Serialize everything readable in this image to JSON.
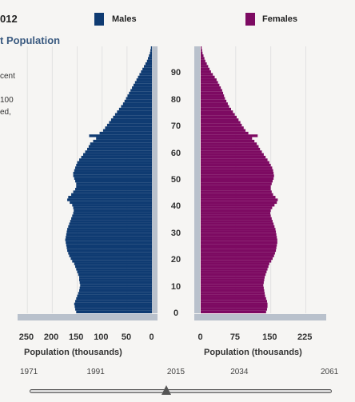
{
  "header": {
    "year_fragment": "012",
    "subtitle_fragment": "t Population",
    "cut_text": [
      "cent",
      "100",
      "ed,"
    ]
  },
  "legend": [
    {
      "label": "Males",
      "color": "#0f3b72"
    },
    {
      "label": "Females",
      "color": "#7d0a62"
    }
  ],
  "chart_data": {
    "type": "bar",
    "orientation": "horizontal-pyramid",
    "age_axis_labels": [
      "0",
      "10",
      "20",
      "30",
      "40",
      "50",
      "60",
      "70",
      "80",
      "90"
    ],
    "males_axis": {
      "label": "Population (thousands)",
      "ticks": [
        "250",
        "200",
        "150",
        "100",
        "50",
        "0"
      ],
      "xlim": [
        260,
        0
      ]
    },
    "females_axis": {
      "label": "Population (thousands)",
      "ticks": [
        "0",
        "75",
        "150",
        "225"
      ],
      "xlim": [
        0,
        255
      ]
    },
    "ages": [
      0,
      1,
      2,
      3,
      4,
      5,
      6,
      7,
      8,
      9,
      10,
      11,
      12,
      13,
      14,
      15,
      16,
      17,
      18,
      19,
      20,
      21,
      22,
      23,
      24,
      25,
      26,
      27,
      28,
      29,
      30,
      31,
      32,
      33,
      34,
      35,
      36,
      37,
      38,
      39,
      40,
      41,
      42,
      43,
      44,
      45,
      46,
      47,
      48,
      49,
      50,
      51,
      52,
      53,
      54,
      55,
      56,
      57,
      58,
      59,
      60,
      61,
      62,
      63,
      64,
      65,
      66,
      67,
      68,
      69,
      70,
      71,
      72,
      73,
      74,
      75,
      76,
      77,
      78,
      79,
      80,
      81,
      82,
      83,
      84,
      85,
      86,
      87,
      88,
      89,
      90,
      91,
      92,
      93,
      94,
      95,
      96,
      97,
      98,
      99
    ],
    "males": [
      152,
      154,
      155,
      156,
      154,
      152,
      150,
      148,
      146,
      145,
      144,
      145,
      146,
      146,
      148,
      150,
      152,
      154,
      156,
      160,
      163,
      166,
      168,
      170,
      171,
      172,
      173,
      174,
      173,
      172,
      171,
      170,
      168,
      166,
      164,
      162,
      160,
      158,
      157,
      158,
      160,
      165,
      170,
      168,
      162,
      158,
      154,
      152,
      152,
      154,
      156,
      158,
      158,
      156,
      154,
      152,
      150,
      146,
      142,
      138,
      134,
      130,
      127,
      124,
      118,
      112,
      126,
      105,
      98,
      94,
      90,
      86,
      82,
      78,
      74,
      70,
      66,
      62,
      58,
      55,
      52,
      49,
      46,
      43,
      40,
      37,
      34,
      31,
      28,
      25,
      22,
      19,
      16,
      13,
      10,
      8,
      6,
      4,
      3,
      2
    ],
    "females": [
      140,
      142,
      143,
      143,
      142,
      140,
      138,
      137,
      136,
      135,
      134,
      135,
      136,
      137,
      139,
      141,
      143,
      145,
      147,
      151,
      154,
      157,
      159,
      161,
      162,
      163,
      164,
      164,
      163,
      162,
      161,
      160,
      158,
      156,
      154,
      152,
      150,
      149,
      150,
      153,
      158,
      163,
      165,
      160,
      155,
      152,
      150,
      150,
      152,
      154,
      156,
      157,
      156,
      155,
      153,
      150,
      147,
      143,
      139,
      135,
      131,
      127,
      124,
      120,
      115,
      110,
      122,
      102,
      96,
      92,
      88,
      85,
      81,
      77,
      73,
      69,
      65,
      61,
      58,
      55,
      52,
      50,
      48,
      46,
      43,
      40,
      37,
      34,
      30,
      26,
      22,
      19,
      16,
      13,
      10,
      8,
      6,
      4,
      3,
      2
    ],
    "timeline": {
      "years": [
        "1971",
        "1991",
        "2015",
        "2034",
        "2061"
      ],
      "current": 2012,
      "start": 1971,
      "end": 2061
    }
  }
}
